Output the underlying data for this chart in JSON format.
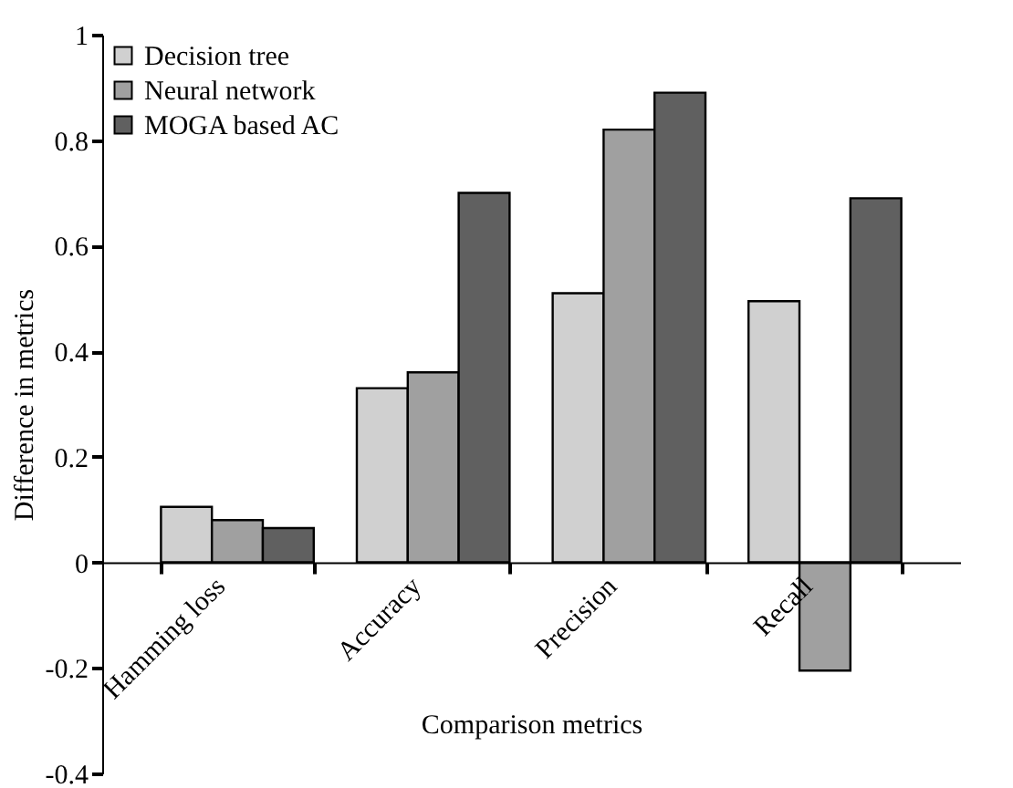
{
  "chart_data": {
    "type": "bar",
    "xlabel": "Comparison metrics",
    "ylabel": "Difference in metrics",
    "categories": [
      "Hamming loss",
      "Accuracy",
      "Precision",
      "Recall"
    ],
    "series": [
      {
        "name": "Decision tree",
        "color": "#d0d0d0",
        "values": [
          0.105,
          0.33,
          0.51,
          0.495
        ]
      },
      {
        "name": "Neural network",
        "color": "#a0a0a0",
        "values": [
          0.08,
          0.36,
          0.82,
          -0.205
        ]
      },
      {
        "name": "MOGA based AC",
        "color": "#606060",
        "values": [
          0.065,
          0.7,
          0.89,
          0.69
        ]
      }
    ],
    "ylim": [
      -0.4,
      1
    ],
    "yticks": [
      {
        "value": -0.4,
        "label": "-0.4"
      },
      {
        "value": -0.2,
        "label": "-0.2"
      },
      0,
      0.2,
      0.4,
      0.6,
      0.8,
      1
    ],
    "grid": false,
    "legend": "top left"
  }
}
